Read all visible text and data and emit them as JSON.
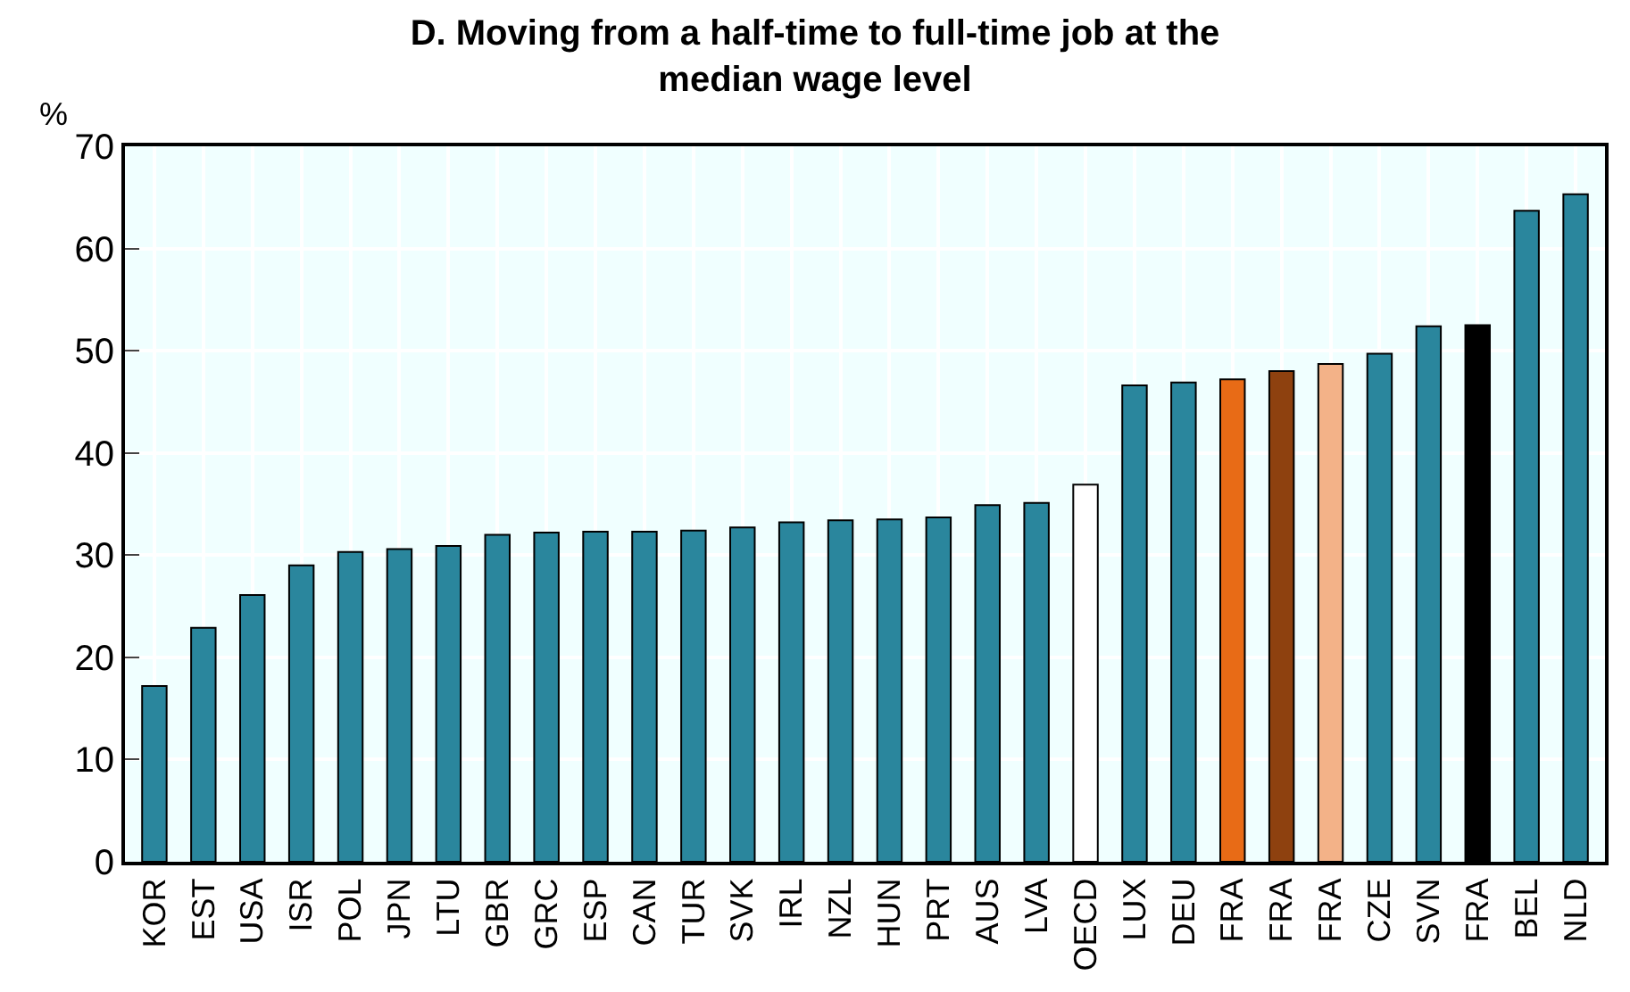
{
  "chart_data": {
    "type": "bar",
    "title": "D. Moving from a half-time to full-time job at the median wage level",
    "ylabel": "%",
    "categories": [
      "KOR",
      "EST",
      "USA",
      "ISR",
      "POL",
      "JPN",
      "LTU",
      "GBR",
      "GRC",
      "ESP",
      "CAN",
      "TUR",
      "SVK",
      "IRL",
      "NZL",
      "HUN",
      "PRT",
      "AUS",
      "LVA",
      "OECD",
      "LUX",
      "DEU",
      "FRA",
      "FRA",
      "FRA",
      "CZE",
      "SVN",
      "FRA",
      "BEL",
      "NLD"
    ],
    "values": [
      17.2,
      22.9,
      26.1,
      29.0,
      30.3,
      30.6,
      30.9,
      32.0,
      32.2,
      32.3,
      32.3,
      32.4,
      32.7,
      33.2,
      33.4,
      33.5,
      33.7,
      34.9,
      35.1,
      36.9,
      46.6,
      46.9,
      47.2,
      48.0,
      48.7,
      49.7,
      52.4,
      52.5,
      63.7,
      65.3
    ],
    "colors": [
      "#2a869d",
      "#2a869d",
      "#2a869d",
      "#2a869d",
      "#2a869d",
      "#2a869d",
      "#2a869d",
      "#2a869d",
      "#2a869d",
      "#2a869d",
      "#2a869d",
      "#2a869d",
      "#2a869d",
      "#2a869d",
      "#2a869d",
      "#2a869d",
      "#2a869d",
      "#2a869d",
      "#2a869d",
      "#ffffff",
      "#2a869d",
      "#2a869d",
      "#e86b16",
      "#8e410f",
      "#f3b288",
      "#2a869d",
      "#2a869d",
      "#000000",
      "#2a869d",
      "#2a869d"
    ],
    "ylim": [
      0,
      70
    ],
    "yticks": [
      0,
      10,
      20,
      30,
      40,
      50,
      60,
      70
    ],
    "grid": true
  }
}
